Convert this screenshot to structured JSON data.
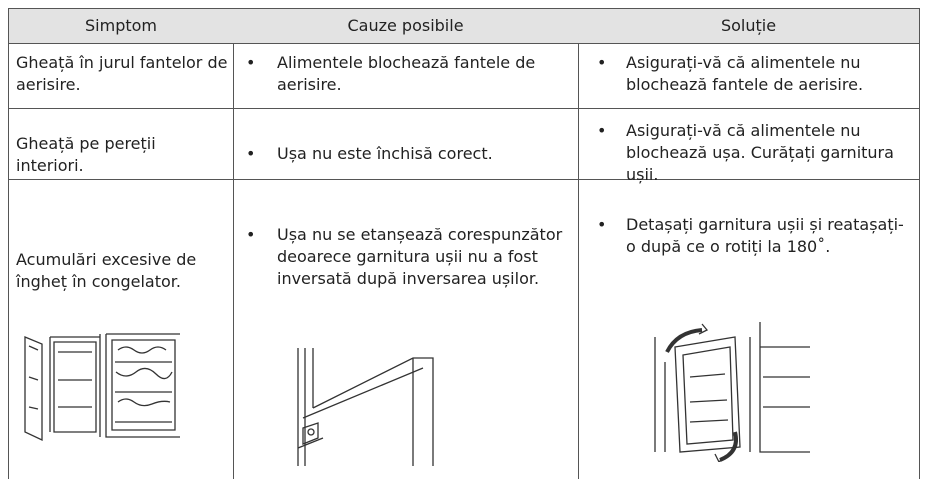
{
  "header": {
    "columns": [
      "Simptom",
      "Cauze posibile",
      "Soluție"
    ]
  },
  "table": {
    "rows": [
      [
        "Gheață în jurul fantelor de aerisire.",
        [
          "Alimentele blochează fantele de aerisire."
        ],
        [
          "Asigurați-vă că alimentele nu blochează fantele de aerisire."
        ]
      ],
      [
        "Gheață pe pereții interiori.",
        [
          "Ușa nu este închisă corect."
        ],
        [
          "Asigurați-vă că alimentele nu blochează ușa. Curățați garnitura ușii."
        ]
      ],
      [
        "Acumulări excesive de îngheț în congelator.",
        [
          "Ușa nu se etanșează corespunzător deoarece garnitura ușii nu a fost inversată după inversarea ușilor."
        ],
        [
          "Detașați garnitura ușii și reatașați-o după ce o rotiți la 180˚."
        ]
      ]
    ]
  }
}
